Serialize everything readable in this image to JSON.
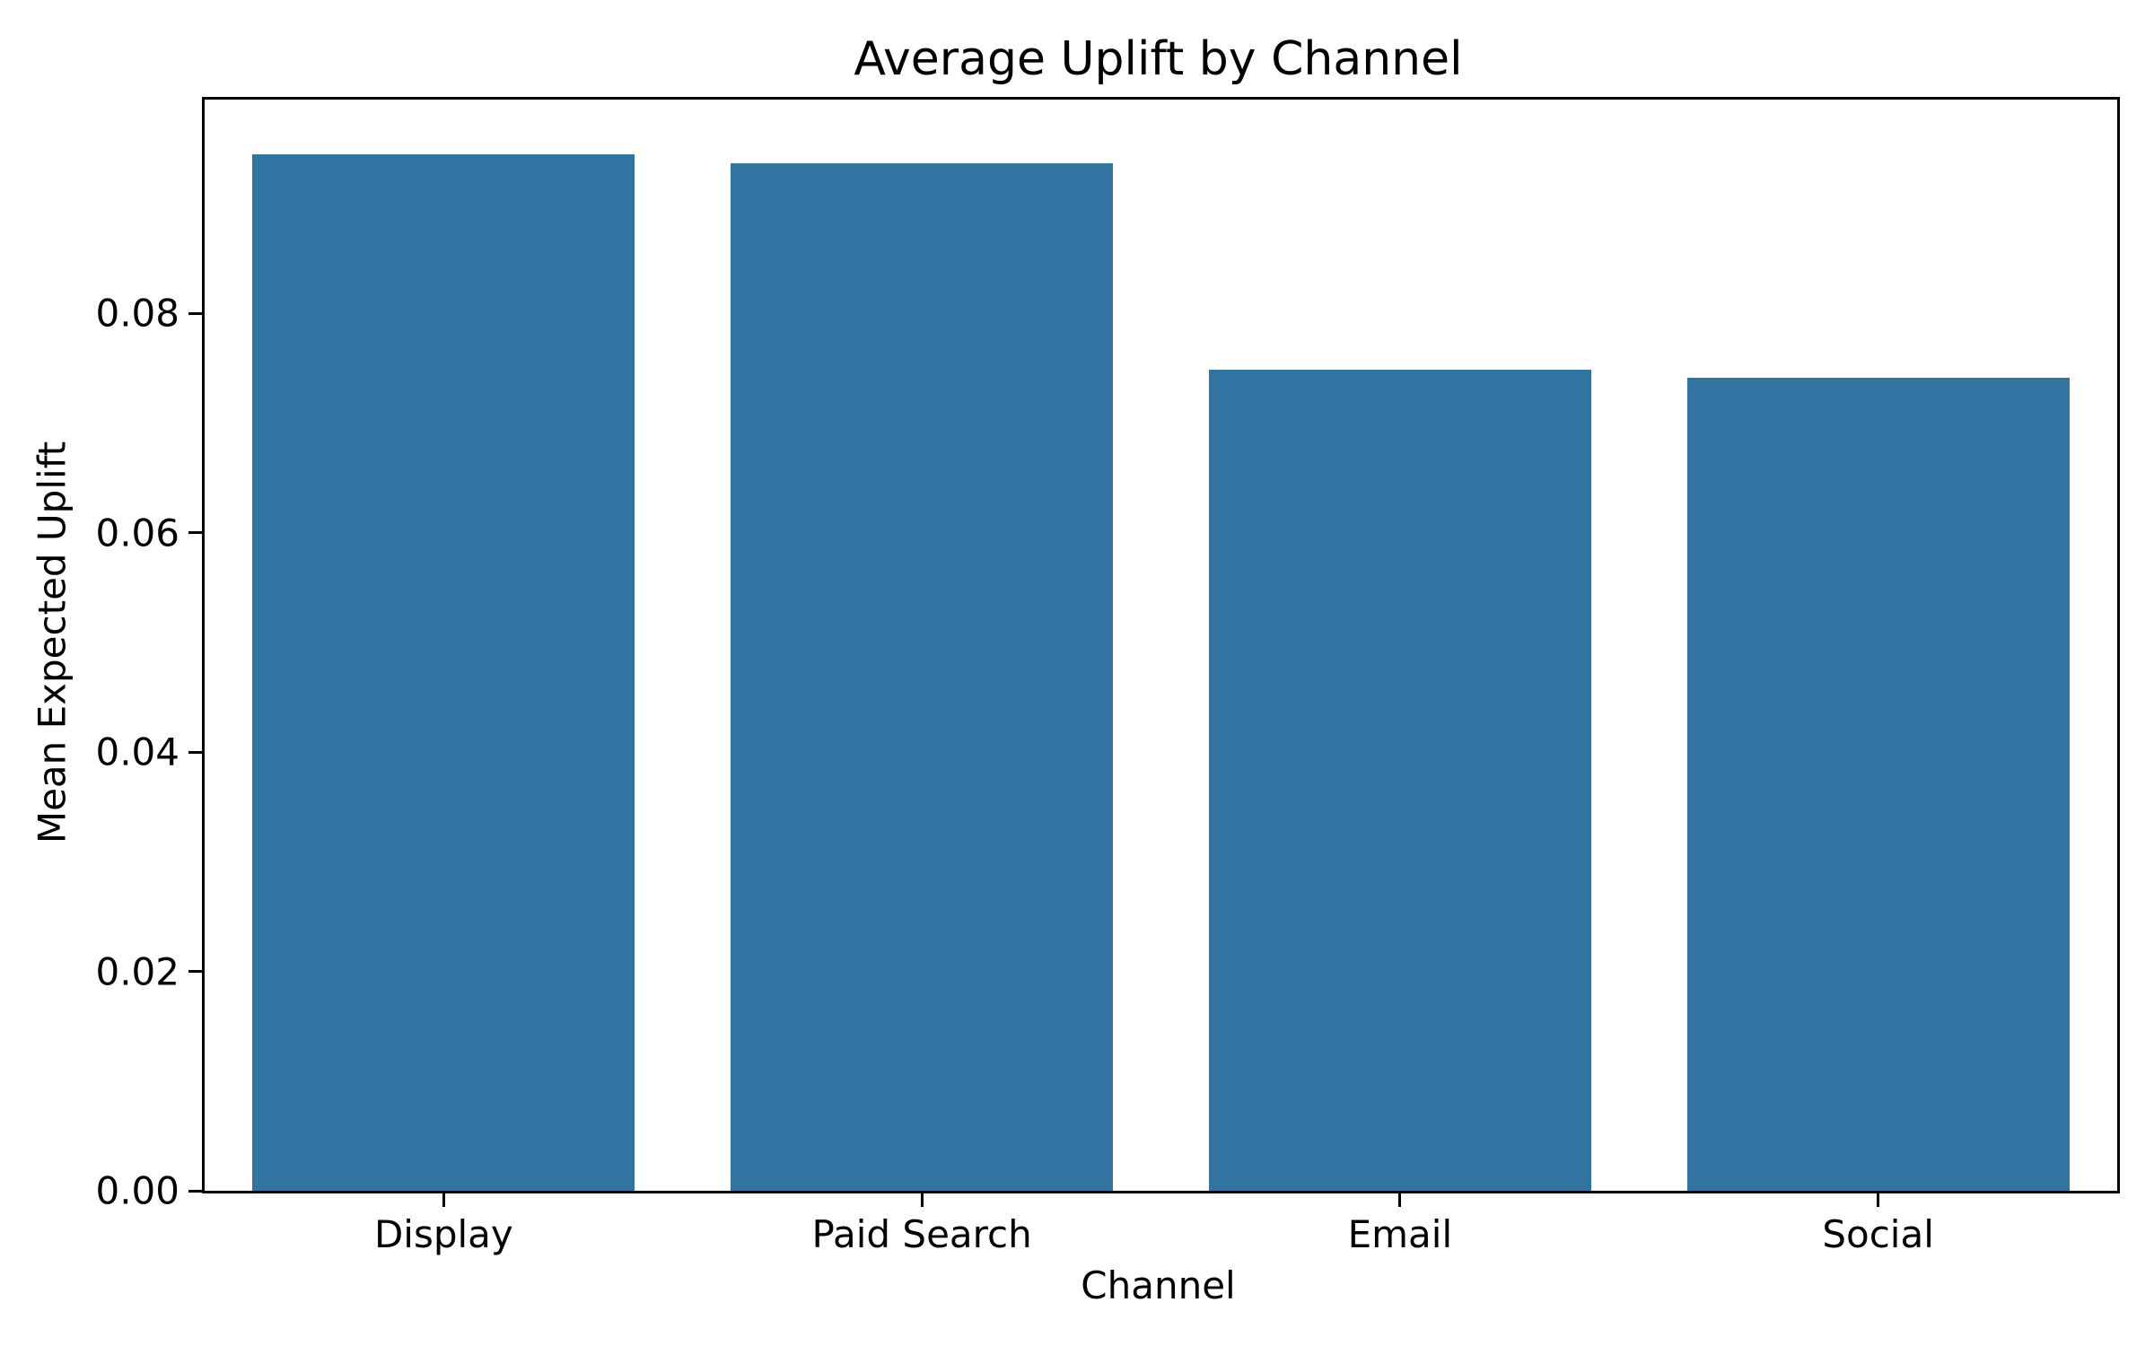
{
  "figure": {
    "background_color": "#ffffff",
    "axis_color": "#000000",
    "text_color": "#000000"
  },
  "chart_data": {
    "type": "bar",
    "title": "Average Uplift by Channel",
    "xlabel": "Channel",
    "ylabel": "Mean Expected Uplift",
    "categories": [
      "Display",
      "Paid Search",
      "Email",
      "Social"
    ],
    "values": [
      0.0945,
      0.0937,
      0.0749,
      0.0741
    ],
    "bar_color": "#3174a1",
    "bar_width_fraction": 0.8,
    "ylim": [
      0,
      0.0995
    ],
    "yticks": [
      0,
      0.02,
      0.04,
      0.06,
      0.08
    ],
    "ytick_labels": [
      "0.00",
      "0.02",
      "0.04",
      "0.06",
      "0.08"
    ],
    "grid": false,
    "legend": "none"
  }
}
